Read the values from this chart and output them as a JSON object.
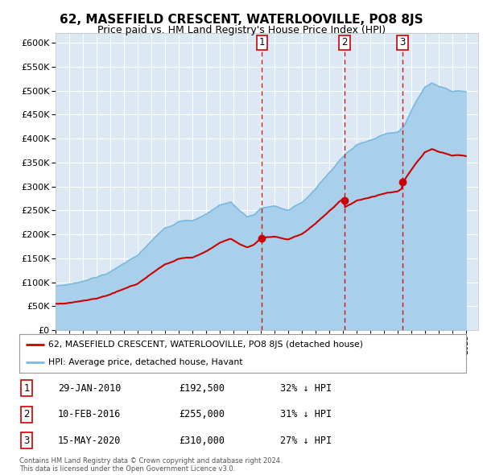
{
  "title": "62, MASEFIELD CRESCENT, WATERLOOVILLE, PO8 8JS",
  "subtitle": "Price paid vs. HM Land Registry's House Price Index (HPI)",
  "title_fontsize": 11,
  "subtitle_fontsize": 9,
  "ylim": [
    0,
    620000
  ],
  "yticks": [
    0,
    50000,
    100000,
    150000,
    200000,
    250000,
    300000,
    350000,
    400000,
    450000,
    500000,
    550000,
    600000
  ],
  "background_color": "#ffffff",
  "plot_bg_color": "#dce9f5",
  "grid_color": "#ffffff",
  "hpi_color": "#7ab8e0",
  "hpi_fill_color": "#a8d0ea",
  "price_color": "#cc0000",
  "sale_marker_color": "#cc0000",
  "dashed_line_color": "#cc0000",
  "legend_entries": [
    "62, MASEFIELD CRESCENT, WATERLOOVILLE, PO8 8JS (detached house)",
    "HPI: Average price, detached house, Havant"
  ],
  "sales": [
    {
      "num": 1,
      "date": "29-JAN-2010",
      "price": 192500,
      "x": 2010.08
    },
    {
      "num": 2,
      "date": "10-FEB-2016",
      "price": 255000,
      "x": 2016.12
    },
    {
      "num": 3,
      "date": "15-MAY-2020",
      "price": 310000,
      "x": 2020.37
    }
  ],
  "footnote": "Contains HM Land Registry data © Crown copyright and database right 2024.\nThis data is licensed under the Open Government Licence v3.0.",
  "table_rows": [
    {
      "num": 1,
      "date": "29-JAN-2010",
      "price": "£192,500",
      "pct": "32% ↓ HPI"
    },
    {
      "num": 2,
      "date": "10-FEB-2016",
      "price": "£255,000",
      "pct": "31% ↓ HPI"
    },
    {
      "num": 3,
      "date": "15-MAY-2020",
      "price": "£310,000",
      "pct": "27% ↓ HPI"
    }
  ]
}
